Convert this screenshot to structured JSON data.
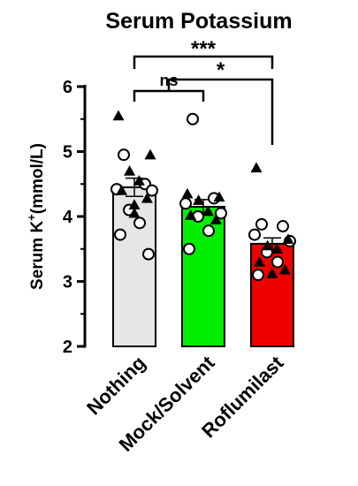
{
  "chart_data": {
    "type": "bar",
    "title": "Serum Potassium",
    "ylabel": "Serum K",
    "ylabel_sup": "+",
    "ylabel_unit": "(mmol/L)",
    "ylim": [
      2,
      6
    ],
    "yticks": [
      "2",
      "3",
      "4",
      "5",
      "6"
    ],
    "categories": [
      "Nothing",
      "Mock/Solvent",
      "Roflumilast"
    ],
    "values": [
      4.45,
      4.15,
      3.58
    ],
    "errors": [
      0.14,
      0.11,
      0.09
    ],
    "colors": [
      "#e6e6e6",
      "#00ee00",
      "#ee0000"
    ],
    "points": [
      {
        "triangles": [
          5.55,
          4.95,
          4.7,
          4.55,
          4.4,
          4.28,
          4.18,
          4.05
        ],
        "circles": [
          4.95,
          4.5,
          4.42,
          4.4,
          4.1,
          3.9,
          3.72,
          3.42
        ]
      },
      {
        "triangles": [
          4.35,
          4.3,
          4.25,
          4.08,
          4.02,
          3.95
        ],
        "circles": [
          5.5,
          4.28,
          4.2,
          4.05,
          4.0,
          3.78,
          3.5
        ]
      },
      {
        "triangles": [
          4.75,
          3.65,
          3.55,
          3.5,
          3.3,
          3.18,
          3.12
        ],
        "circles": [
          3.88,
          3.85,
          3.72,
          3.62,
          3.45,
          3.3,
          3.1
        ]
      }
    ],
    "significance": [
      {
        "from": 0,
        "to": 1,
        "label": "ns"
      },
      {
        "from": 1,
        "to": 2,
        "label": "*"
      },
      {
        "from": 0,
        "to": 2,
        "label": "***"
      }
    ]
  }
}
